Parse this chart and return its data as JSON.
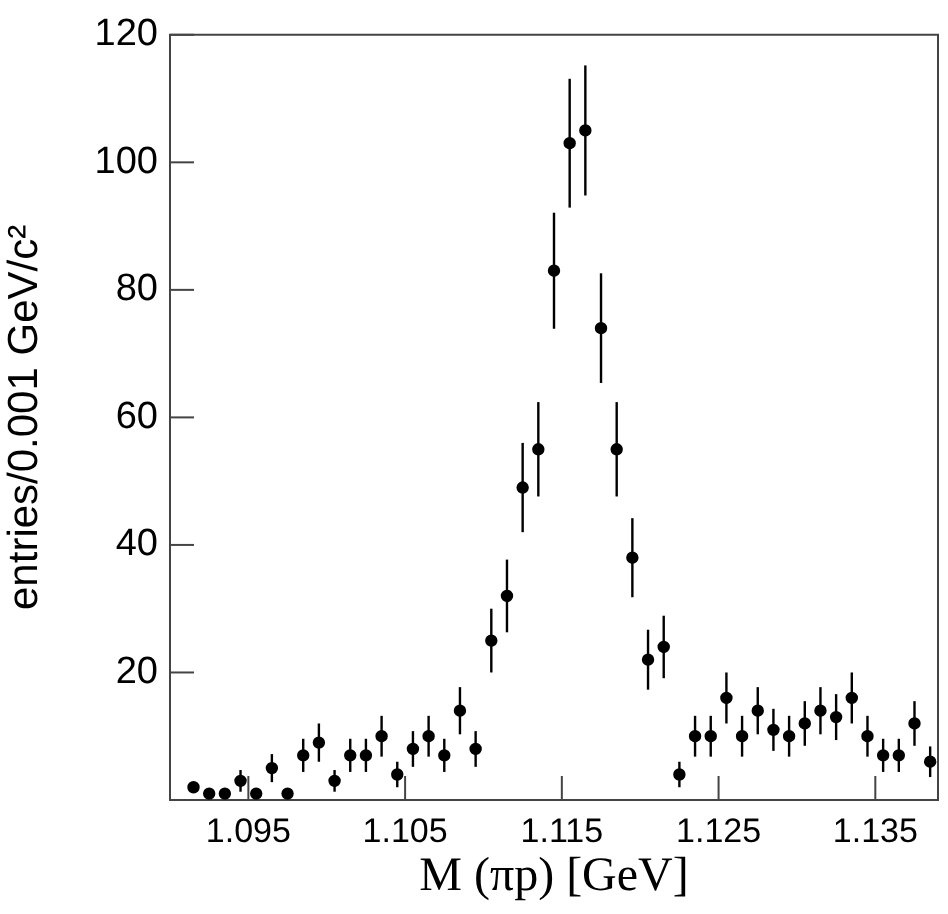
{
  "chart_data": {
    "type": "scatter",
    "xlabel": "M (πp) [GeV]",
    "ylabel": "entries/0.001 GeV/c²",
    "x": [
      1.0915,
      1.0925,
      1.0935,
      1.0945,
      1.0955,
      1.0965,
      1.0975,
      1.0985,
      1.0995,
      1.1005,
      1.1015,
      1.1025,
      1.1035,
      1.1045,
      1.1055,
      1.1065,
      1.1075,
      1.1085,
      1.1095,
      1.1105,
      1.1115,
      1.1125,
      1.1135,
      1.1145,
      1.1155,
      1.1165,
      1.1175,
      1.1185,
      1.1195,
      1.1205,
      1.1215,
      1.1225,
      1.1235,
      1.1245,
      1.1255,
      1.1265,
      1.1275,
      1.1285,
      1.1295,
      1.1305,
      1.1315,
      1.1325,
      1.1335,
      1.1345,
      1.1355,
      1.1365,
      1.1375,
      1.1385
    ],
    "series": [
      {
        "color": "#000000",
        "values": [
          2,
          1,
          1,
          3,
          1,
          5,
          1,
          7,
          9,
          3,
          7,
          7,
          10,
          4,
          8,
          10,
          7,
          14,
          8,
          25,
          32,
          49,
          55,
          83,
          103,
          105,
          74,
          55,
          38,
          22,
          24,
          4,
          10,
          10,
          16,
          10,
          14,
          11,
          10,
          12,
          14,
          13,
          16,
          10,
          7,
          7,
          12,
          6
        ],
        "errors": [
          null,
          null,
          null,
          1.7,
          null,
          2.2,
          null,
          2.6,
          3,
          1.7,
          2.6,
          2.6,
          3.2,
          2,
          2.8,
          3.2,
          2.6,
          3.7,
          2.8,
          5,
          5.7,
          7,
          7.4,
          9.1,
          10.1,
          10.2,
          8.6,
          7.4,
          6.2,
          4.7,
          4.9,
          2,
          3.2,
          3.2,
          4,
          3.2,
          3.7,
          3.3,
          3.2,
          3.5,
          3.7,
          3.6,
          4,
          3.2,
          2.6,
          2.6,
          3.5,
          2.4
        ]
      }
    ],
    "xlim": [
      1.09,
      1.139
    ],
    "ylim": [
      0,
      120
    ],
    "xticks": [
      1.095,
      1.105,
      1.115,
      1.125,
      1.135
    ],
    "yticks": [
      20,
      40,
      60,
      80,
      100,
      120
    ],
    "marker": "circle",
    "grid": false,
    "legend": false
  }
}
